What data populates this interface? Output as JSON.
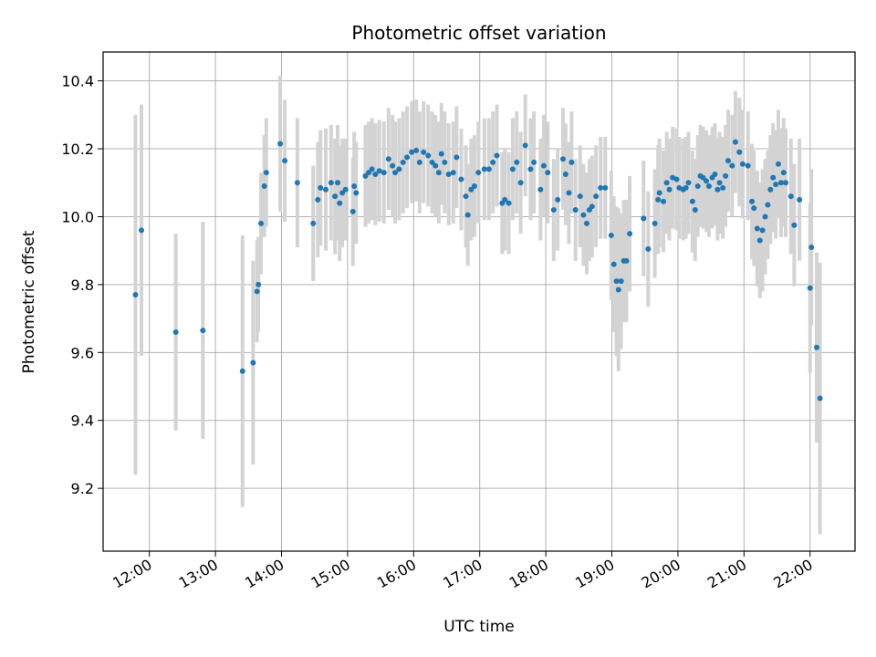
{
  "chart_data": {
    "type": "scatter",
    "title": "Photometric offset variation",
    "xlabel": "UTC time",
    "ylabel": "Photometric offset",
    "x_ticks": [
      "12:00",
      "13:00",
      "14:00",
      "15:00",
      "16:00",
      "17:00",
      "18:00",
      "19:00",
      "20:00",
      "21:00",
      "22:00"
    ],
    "y_ticks": [
      "9.2",
      "9.4",
      "9.6",
      "9.8",
      "10.0",
      "10.2",
      "10.4"
    ],
    "x_unit": "hours UTC",
    "xlim": [
      11.3,
      22.68
    ],
    "ylim": [
      9.015,
      10.485
    ],
    "grid": true,
    "colors": {
      "point": "#1f77b4",
      "errorbar": "#d3d3d3",
      "grid": "#b0b0b0"
    },
    "series": [
      {
        "points": [
          [
            11.79,
            9.77,
            0.53
          ],
          [
            11.88,
            9.96,
            0.37
          ],
          [
            12.4,
            9.66,
            0.29
          ],
          [
            12.81,
            9.665,
            0.32
          ],
          [
            13.41,
            9.545,
            0.4
          ],
          [
            13.57,
            9.57,
            0.3
          ],
          [
            13.63,
            9.78,
            0.15
          ],
          [
            13.65,
            9.8,
            0.14
          ],
          [
            13.69,
            9.98,
            0.15
          ],
          [
            13.74,
            10.09,
            0.15
          ],
          [
            13.77,
            10.13,
            0.16
          ],
          [
            13.98,
            10.215,
            0.2
          ],
          [
            14.05,
            10.165,
            0.18
          ],
          [
            14.24,
            10.1,
            0.19
          ],
          [
            14.48,
            9.98,
            0.17
          ],
          [
            14.55,
            10.05,
            0.17
          ],
          [
            14.59,
            10.085,
            0.17
          ],
          [
            14.67,
            10.08,
            0.18
          ],
          [
            14.75,
            10.1,
            0.17
          ],
          [
            14.81,
            10.06,
            0.17
          ],
          [
            14.85,
            10.1,
            0.17
          ],
          [
            14.88,
            10.04,
            0.17
          ],
          [
            14.92,
            10.07,
            0.16
          ],
          [
            14.97,
            10.08,
            0.15
          ],
          [
            15.08,
            10.015,
            0.16
          ],
          [
            15.1,
            10.09,
            0.16
          ],
          [
            15.13,
            10.07,
            0.15
          ],
          [
            15.27,
            10.12,
            0.15
          ],
          [
            15.32,
            10.13,
            0.15
          ],
          [
            15.37,
            10.14,
            0.15
          ],
          [
            15.42,
            10.125,
            0.15
          ],
          [
            15.48,
            10.135,
            0.15
          ],
          [
            15.55,
            10.13,
            0.15
          ],
          [
            15.62,
            10.17,
            0.15
          ],
          [
            15.68,
            10.15,
            0.15
          ],
          [
            15.72,
            10.13,
            0.15
          ],
          [
            15.78,
            10.14,
            0.15
          ],
          [
            15.84,
            10.16,
            0.15
          ],
          [
            15.9,
            10.175,
            0.15
          ],
          [
            15.97,
            10.19,
            0.15
          ],
          [
            16.04,
            10.195,
            0.15
          ],
          [
            16.09,
            10.16,
            0.15
          ],
          [
            16.15,
            10.19,
            0.15
          ],
          [
            16.22,
            10.18,
            0.15
          ],
          [
            16.28,
            10.16,
            0.15
          ],
          [
            16.33,
            10.15,
            0.15
          ],
          [
            16.38,
            10.13,
            0.15
          ],
          [
            16.42,
            10.185,
            0.15
          ],
          [
            16.47,
            10.16,
            0.15
          ],
          [
            16.53,
            10.125,
            0.15
          ],
          [
            16.6,
            10.13,
            0.15
          ],
          [
            16.65,
            10.175,
            0.15
          ],
          [
            16.72,
            10.11,
            0.15
          ],
          [
            16.79,
            10.06,
            0.15
          ],
          [
            16.82,
            10.005,
            0.15
          ],
          [
            16.87,
            10.08,
            0.15
          ],
          [
            16.92,
            10.09,
            0.15
          ],
          [
            16.98,
            10.13,
            0.15
          ],
          [
            17.07,
            10.14,
            0.15
          ],
          [
            17.14,
            10.14,
            0.15
          ],
          [
            17.2,
            10.16,
            0.15
          ],
          [
            17.26,
            10.18,
            0.15
          ],
          [
            17.34,
            10.04,
            0.15
          ],
          [
            17.38,
            10.05,
            0.15
          ],
          [
            17.44,
            10.04,
            0.15
          ],
          [
            17.5,
            10.14,
            0.15
          ],
          [
            17.56,
            10.16,
            0.15
          ],
          [
            17.62,
            10.1,
            0.15
          ],
          [
            17.69,
            10.21,
            0.15
          ],
          [
            17.77,
            10.14,
            0.15
          ],
          [
            17.82,
            10.16,
            0.15
          ],
          [
            17.92,
            10.08,
            0.15
          ],
          [
            17.97,
            10.15,
            0.15
          ],
          [
            18.03,
            10.13,
            0.15
          ],
          [
            18.12,
            10.02,
            0.15
          ],
          [
            18.18,
            10.05,
            0.15
          ],
          [
            18.26,
            10.17,
            0.15
          ],
          [
            18.3,
            10.125,
            0.15
          ],
          [
            18.35,
            10.07,
            0.15
          ],
          [
            18.39,
            10.16,
            0.15
          ],
          [
            18.45,
            10.02,
            0.15
          ],
          [
            18.52,
            10.06,
            0.15
          ],
          [
            18.57,
            10.005,
            0.15
          ],
          [
            18.62,
            9.98,
            0.15
          ],
          [
            18.66,
            10.02,
            0.15
          ],
          [
            18.7,
            10.03,
            0.15
          ],
          [
            18.76,
            10.06,
            0.15
          ],
          [
            18.83,
            10.085,
            0.15
          ],
          [
            18.9,
            10.085,
            0.15
          ],
          [
            18.99,
            9.945,
            0.19
          ],
          [
            19.03,
            9.86,
            0.2
          ],
          [
            19.07,
            9.81,
            0.22
          ],
          [
            19.1,
            9.785,
            0.24
          ],
          [
            19.14,
            9.81,
            0.2
          ],
          [
            19.18,
            9.87,
            0.18
          ],
          [
            19.22,
            9.87,
            0.18
          ],
          [
            19.27,
            9.95,
            0.17
          ],
          [
            19.48,
            9.995,
            0.17
          ],
          [
            19.55,
            9.905,
            0.17
          ],
          [
            19.65,
            9.98,
            0.16
          ],
          [
            19.7,
            10.05,
            0.16
          ],
          [
            19.72,
            10.07,
            0.16
          ],
          [
            19.78,
            10.045,
            0.15
          ],
          [
            19.83,
            10.1,
            0.15
          ],
          [
            19.87,
            10.08,
            0.15
          ],
          [
            19.92,
            10.115,
            0.15
          ],
          [
            19.98,
            10.11,
            0.15
          ],
          [
            20.02,
            10.085,
            0.15
          ],
          [
            20.08,
            10.08,
            0.15
          ],
          [
            20.12,
            10.085,
            0.15
          ],
          [
            20.16,
            10.1,
            0.15
          ],
          [
            20.22,
            10.045,
            0.15
          ],
          [
            20.26,
            10.02,
            0.15
          ],
          [
            20.3,
            10.09,
            0.15
          ],
          [
            20.34,
            10.12,
            0.15
          ],
          [
            20.38,
            10.115,
            0.15
          ],
          [
            20.43,
            10.105,
            0.15
          ],
          [
            20.47,
            10.09,
            0.15
          ],
          [
            20.52,
            10.115,
            0.15
          ],
          [
            20.56,
            10.125,
            0.15
          ],
          [
            20.6,
            10.08,
            0.15
          ],
          [
            20.63,
            10.1,
            0.15
          ],
          [
            20.68,
            10.085,
            0.15
          ],
          [
            20.72,
            10.12,
            0.15
          ],
          [
            20.76,
            10.165,
            0.15
          ],
          [
            20.82,
            10.15,
            0.15
          ],
          [
            20.87,
            10.22,
            0.15
          ],
          [
            20.93,
            10.19,
            0.16
          ],
          [
            20.98,
            10.155,
            0.16
          ],
          [
            21.06,
            10.15,
            0.16
          ],
          [
            21.12,
            10.045,
            0.17
          ],
          [
            21.15,
            10.025,
            0.17
          ],
          [
            21.2,
            9.965,
            0.17
          ],
          [
            21.24,
            9.93,
            0.17
          ],
          [
            21.28,
            9.96,
            0.18
          ],
          [
            21.32,
            10.0,
            0.17
          ],
          [
            21.36,
            10.035,
            0.16
          ],
          [
            21.4,
            10.08,
            0.16
          ],
          [
            21.44,
            10.115,
            0.16
          ],
          [
            21.48,
            10.095,
            0.16
          ],
          [
            21.52,
            10.155,
            0.16
          ],
          [
            21.56,
            10.1,
            0.16
          ],
          [
            21.6,
            10.13,
            0.16
          ],
          [
            21.63,
            10.1,
            0.16
          ],
          [
            21.71,
            10.06,
            0.17
          ],
          [
            21.76,
            9.975,
            0.18
          ],
          [
            21.84,
            10.05,
            0.18
          ],
          [
            22.0,
            9.79,
            0.25
          ],
          [
            22.02,
            9.91,
            0.23
          ],
          [
            22.1,
            9.615,
            0.28
          ],
          [
            22.15,
            9.465,
            0.4
          ]
        ]
      }
    ]
  }
}
